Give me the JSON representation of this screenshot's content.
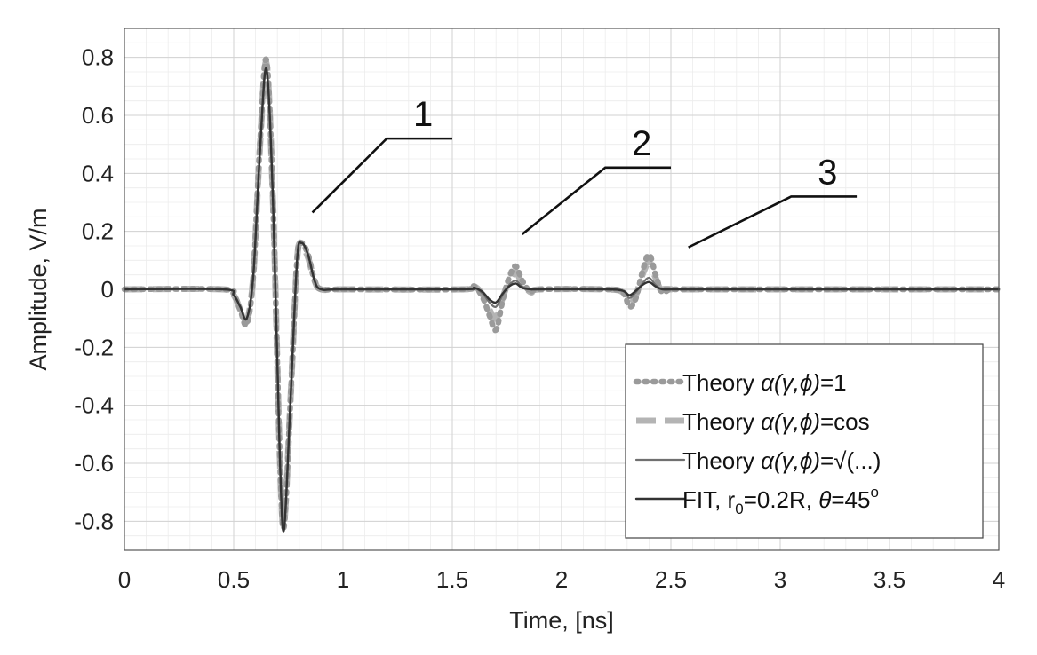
{
  "chart_data": {
    "type": "line",
    "title": "",
    "xlabel": "Time, [ns]",
    "ylabel": "Amplitude, V/m",
    "xlim": [
      0,
      4
    ],
    "ylim": [
      -0.9,
      0.9
    ],
    "grid": true,
    "minor_grid": true,
    "legend_position": "bottom-right",
    "x_ticks": [
      0,
      0.5,
      1,
      1.5,
      2,
      2.5,
      3,
      3.5,
      4
    ],
    "x_tick_labels": [
      "0",
      "0.5",
      "1",
      "1.5",
      "2",
      "2.5",
      "3",
      "3.5",
      "4"
    ],
    "y_ticks": [
      0.8,
      0.6,
      0.4,
      0.2,
      0,
      -0.2,
      -0.4,
      -0.6,
      -0.8
    ],
    "y_tick_labels": [
      "0.8",
      "0.6",
      "0.4",
      "0.2",
      "0",
      "-0.2",
      "-0.4",
      "-0.6",
      "-0.8"
    ],
    "series": [
      {
        "name": "Theory α(γ,φ)=1",
        "label_prefix": "Theory ",
        "label_formula": "α(γ,ϕ)",
        "label_suffix": "=1",
        "color": "#9a9a9a",
        "style": "dotted",
        "x": [
          0,
          0.45,
          0.5,
          0.53,
          0.56,
          0.59,
          0.62,
          0.65,
          0.68,
          0.71,
          0.73,
          0.76,
          0.79,
          0.81,
          0.84,
          0.87,
          0.9,
          1.0,
          1.55,
          1.6,
          1.64,
          1.67,
          1.7,
          1.73,
          1.76,
          1.79,
          1.82,
          1.86,
          1.9,
          2.2,
          2.28,
          2.31,
          2.34,
          2.37,
          2.4,
          2.43,
          2.46,
          2.5,
          2.6,
          4
        ],
        "y": [
          0,
          0,
          -0.02,
          -0.07,
          -0.12,
          0.05,
          0.5,
          0.79,
          0.3,
          -0.55,
          -0.82,
          -0.38,
          0.1,
          0.16,
          0.12,
          0.03,
          0,
          0,
          0,
          0.01,
          -0.03,
          -0.09,
          -0.14,
          -0.04,
          0.04,
          0.08,
          0.03,
          -0.01,
          0,
          0,
          -0.01,
          -0.06,
          -0.03,
          0.06,
          0.12,
          0.05,
          -0.01,
          0,
          0,
          0
        ]
      },
      {
        "name": "Theory α(γ,φ)=cos",
        "label_prefix": "Theory ",
        "label_formula": "α(γ,ϕ)",
        "label_suffix": "=cos",
        "color": "#b4b4b4",
        "style": "dashed",
        "x": [
          0,
          0.45,
          0.5,
          0.53,
          0.56,
          0.59,
          0.62,
          0.65,
          0.68,
          0.71,
          0.73,
          0.76,
          0.79,
          0.81,
          0.84,
          0.87,
          0.9,
          1.0,
          1.55,
          1.6,
          1.64,
          1.67,
          1.7,
          1.73,
          1.76,
          1.79,
          1.82,
          1.86,
          1.9,
          2.2,
          2.28,
          2.31,
          2.34,
          2.37,
          2.4,
          2.43,
          2.46,
          2.5,
          2.6,
          4
        ],
        "y": [
          0,
          0,
          -0.02,
          -0.07,
          -0.11,
          0.05,
          0.49,
          0.78,
          0.3,
          -0.55,
          -0.81,
          -0.38,
          0.1,
          0.15,
          0.11,
          0.03,
          0,
          0,
          0,
          0.01,
          -0.02,
          -0.07,
          -0.1,
          -0.03,
          0.03,
          0.06,
          0.02,
          -0.01,
          0,
          0,
          -0.01,
          -0.05,
          -0.02,
          0.05,
          0.09,
          0.04,
          -0.01,
          0,
          0,
          0
        ]
      },
      {
        "name": "Theory α(γ,φ)=√(...)",
        "label_prefix": "Theory ",
        "label_formula": "α(γ,ϕ)",
        "label_suffix": "=√(...)",
        "color": "#707070",
        "style": "solid",
        "x": [
          0,
          0.45,
          0.5,
          0.53,
          0.56,
          0.59,
          0.62,
          0.65,
          0.68,
          0.71,
          0.73,
          0.76,
          0.79,
          0.81,
          0.84,
          0.87,
          0.9,
          1.0,
          1.55,
          1.6,
          1.64,
          1.67,
          1.7,
          1.73,
          1.76,
          1.79,
          1.82,
          1.86,
          1.9,
          2.2,
          2.28,
          2.31,
          2.34,
          2.37,
          2.4,
          2.43,
          2.46,
          2.5,
          2.6,
          4
        ],
        "y": [
          0,
          0,
          -0.02,
          -0.06,
          -0.1,
          0.05,
          0.48,
          0.76,
          0.3,
          -0.55,
          -0.82,
          -0.38,
          0.1,
          0.16,
          0.12,
          0.03,
          0,
          0,
          0,
          0.005,
          -0.015,
          -0.045,
          -0.06,
          -0.02,
          0.015,
          0.03,
          0.01,
          0,
          0,
          0,
          -0.005,
          -0.03,
          -0.01,
          0.02,
          0.04,
          0.015,
          0,
          0,
          0,
          0
        ]
      },
      {
        "name": "FIT, r0=0.2R, θ=45°",
        "label_prefix": "FIT, r",
        "label_sub": "0",
        "label_mid": "=0.2R, ",
        "label_formula": "θ",
        "label_suffix": "=45",
        "label_sup": "o",
        "color": "#333333",
        "style": "solid",
        "x": [
          0,
          0.45,
          0.5,
          0.53,
          0.56,
          0.59,
          0.62,
          0.65,
          0.68,
          0.71,
          0.73,
          0.76,
          0.79,
          0.81,
          0.84,
          0.87,
          0.9,
          1.0,
          1.55,
          1.6,
          1.64,
          1.67,
          1.7,
          1.73,
          1.76,
          1.79,
          1.82,
          1.86,
          1.9,
          2.2,
          2.28,
          2.31,
          2.34,
          2.37,
          2.4,
          2.43,
          2.46,
          2.5,
          2.6,
          4
        ],
        "y": [
          0,
          0,
          -0.02,
          -0.06,
          -0.1,
          0.05,
          0.47,
          0.76,
          0.3,
          -0.55,
          -0.83,
          -0.38,
          0.1,
          0.16,
          0.12,
          0.03,
          0,
          0,
          0,
          0.005,
          -0.01,
          -0.035,
          -0.045,
          -0.015,
          0.01,
          0.02,
          0.005,
          0,
          0,
          0,
          -0.005,
          -0.02,
          -0.005,
          0.015,
          0.025,
          0.01,
          0,
          0,
          0,
          0
        ]
      }
    ],
    "annotations": [
      {
        "label": "1",
        "pointer_x": 0.86,
        "pointer_y": 0.265,
        "elbow_x": 1.2,
        "elbow_y": 0.52,
        "end_x": 1.5,
        "end_y": 0.52
      },
      {
        "label": "2",
        "pointer_x": 1.82,
        "pointer_y": 0.19,
        "elbow_x": 2.2,
        "elbow_y": 0.42,
        "end_x": 2.5,
        "end_y": 0.42
      },
      {
        "label": "3",
        "pointer_x": 2.58,
        "pointer_y": 0.145,
        "elbow_x": 3.05,
        "elbow_y": 0.32,
        "end_x": 3.35,
        "end_y": 0.32
      }
    ]
  }
}
